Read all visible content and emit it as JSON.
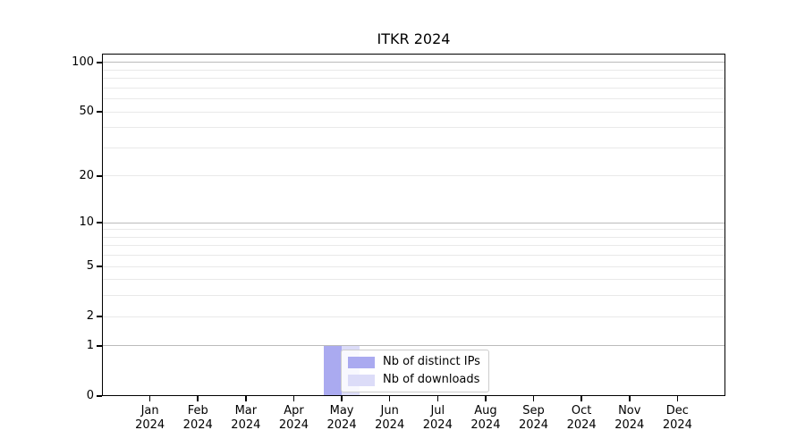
{
  "chart_data": {
    "type": "bar",
    "title": "ITKR 2024",
    "months": [
      "Jan",
      "Feb",
      "Mar",
      "Apr",
      "May",
      "Jun",
      "Jul",
      "Aug",
      "Sep",
      "Oct",
      "Nov",
      "Dec"
    ],
    "year": "2024",
    "series": [
      {
        "name": "Nb of distinct IPs",
        "color": "#aaaaf0",
        "values": [
          0,
          0,
          0,
          0,
          1,
          0,
          0,
          0,
          0,
          0,
          0,
          0
        ]
      },
      {
        "name": "Nb of downloads",
        "color": "#dcdcf8",
        "values": [
          0,
          0,
          0,
          0,
          1,
          0,
          0,
          0,
          0,
          0,
          0,
          0
        ]
      }
    ],
    "yscale": "log1p",
    "ylim": [
      0,
      113
    ],
    "yticks": [
      0,
      1,
      2,
      5,
      10,
      20,
      50,
      100
    ],
    "grid_major": [
      1,
      10,
      100
    ],
    "grid_minor": [
      2,
      3,
      4,
      5,
      6,
      7,
      8,
      9,
      20,
      30,
      40,
      50,
      60,
      70,
      80,
      90
    ],
    "grid": true,
    "legend_position": "inside-lower-center",
    "colors": {
      "axis": "#000000",
      "major_grid": "#bbbbbb",
      "minor_grid": "#e9e9e9",
      "legend_border": "#cccccc",
      "background": "#ffffff"
    }
  }
}
